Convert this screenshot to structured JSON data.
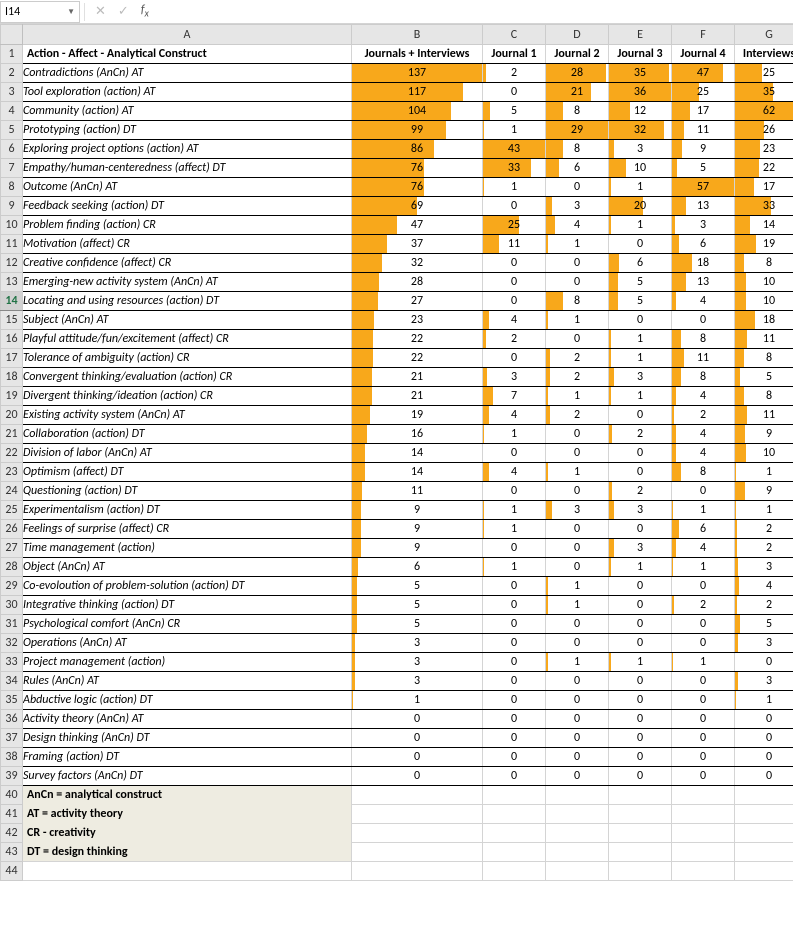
{
  "nameBox": "I14",
  "formula": "",
  "columns": [
    "A",
    "B",
    "C",
    "D",
    "E",
    "F",
    "G"
  ],
  "header": {
    "A": "Action - Affect - Analytical Construct",
    "B": "Journals + Interviews",
    "C": "Journal 1",
    "D": "Journal 2",
    "E": "Journal 3",
    "F": "Journal 4",
    "G": "Interviews"
  },
  "barColor": "#f8a81b",
  "maxValues": {
    "B": 137,
    "C": 43,
    "D": 29,
    "E": 36,
    "F": 57,
    "G": 62
  },
  "selectedRow": 14,
  "rows": [
    {
      "r": 2,
      "label": "Contradictions (AnCn) AT",
      "B": 137,
      "C": 2,
      "D": 28,
      "E": 35,
      "F": 47,
      "G": 25
    },
    {
      "r": 3,
      "label": "Tool exploration (action) AT",
      "B": 117,
      "C": 0,
      "D": 21,
      "E": 36,
      "F": 25,
      "G": 35
    },
    {
      "r": 4,
      "label": "Community (action) AT",
      "B": 104,
      "C": 5,
      "D": 8,
      "E": 12,
      "F": 17,
      "G": 62
    },
    {
      "r": 5,
      "label": "Prototyping (action) DT",
      "B": 99,
      "C": 1,
      "D": 29,
      "E": 32,
      "F": 11,
      "G": 26
    },
    {
      "r": 6,
      "label": "Exploring project options (action) AT",
      "B": 86,
      "C": 43,
      "D": 8,
      "E": 3,
      "F": 9,
      "G": 23
    },
    {
      "r": 7,
      "label": "Empathy/human-centeredness (affect) DT",
      "B": 76,
      "C": 33,
      "D": 6,
      "E": 10,
      "F": 5,
      "G": 22
    },
    {
      "r": 8,
      "label": "Outcome (AnCn) AT",
      "B": 76,
      "C": 1,
      "D": 0,
      "E": 1,
      "F": 57,
      "G": 17
    },
    {
      "r": 9,
      "label": "Feedback seeking (action) DT",
      "B": 69,
      "C": 0,
      "D": 3,
      "E": 20,
      "F": 13,
      "G": 33
    },
    {
      "r": 10,
      "label": "Problem finding (action) CR",
      "B": 47,
      "C": 25,
      "D": 4,
      "E": 1,
      "F": 3,
      "G": 14
    },
    {
      "r": 11,
      "label": "Motivation (affect) CR",
      "B": 37,
      "C": 11,
      "D": 1,
      "E": 0,
      "F": 6,
      "G": 19
    },
    {
      "r": 12,
      "label": "Creative confidence (affect) CR",
      "B": 32,
      "C": 0,
      "D": 0,
      "E": 6,
      "F": 18,
      "G": 8
    },
    {
      "r": 13,
      "label": "Emerging-new activity system (AnCn) AT",
      "B": 28,
      "C": 0,
      "D": 0,
      "E": 5,
      "F": 13,
      "G": 10
    },
    {
      "r": 14,
      "label": "Locating and using resources (action) DT",
      "B": 27,
      "C": 0,
      "D": 8,
      "E": 5,
      "F": 4,
      "G": 10
    },
    {
      "r": 15,
      "label": "Subject (AnCn) AT",
      "B": 23,
      "C": 4,
      "D": 1,
      "E": 0,
      "F": 0,
      "G": 18
    },
    {
      "r": 16,
      "label": "Playful attitude/fun/excitement (affect) CR",
      "B": 22,
      "C": 2,
      "D": 0,
      "E": 1,
      "F": 8,
      "G": 11
    },
    {
      "r": 17,
      "label": "Tolerance of ambiguity (action) CR",
      "B": 22,
      "C": 0,
      "D": 2,
      "E": 1,
      "F": 11,
      "G": 8
    },
    {
      "r": 18,
      "label": "Convergent thinking/evaluation (action) CR",
      "B": 21,
      "C": 3,
      "D": 2,
      "E": 3,
      "F": 8,
      "G": 5
    },
    {
      "r": 19,
      "label": "Divergent thinking/ideation (action) CR",
      "B": 21,
      "C": 7,
      "D": 1,
      "E": 1,
      "F": 4,
      "G": 8
    },
    {
      "r": 20,
      "label": "Existing activity system (AnCn) AT",
      "B": 19,
      "C": 4,
      "D": 2,
      "E": 0,
      "F": 2,
      "G": 11
    },
    {
      "r": 21,
      "label": "Collaboration (action) DT",
      "B": 16,
      "C": 1,
      "D": 0,
      "E": 2,
      "F": 4,
      "G": 9
    },
    {
      "r": 22,
      "label": "Division of labor (AnCn) AT",
      "B": 14,
      "C": 0,
      "D": 0,
      "E": 0,
      "F": 4,
      "G": 10
    },
    {
      "r": 23,
      "label": "Optimism (affect) DT",
      "B": 14,
      "C": 4,
      "D": 1,
      "E": 0,
      "F": 8,
      "G": 1
    },
    {
      "r": 24,
      "label": "Questioning (action) DT",
      "B": 11,
      "C": 0,
      "D": 0,
      "E": 2,
      "F": 0,
      "G": 9
    },
    {
      "r": 25,
      "label": "Experimentalism (action) DT",
      "B": 9,
      "C": 1,
      "D": 3,
      "E": 3,
      "F": 1,
      "G": 1
    },
    {
      "r": 26,
      "label": "Feelings of surprise (affect) CR",
      "B": 9,
      "C": 1,
      "D": 0,
      "E": 0,
      "F": 6,
      "G": 2
    },
    {
      "r": 27,
      "label": "Time management (action)",
      "B": 9,
      "C": 0,
      "D": 0,
      "E": 3,
      "F": 4,
      "G": 2
    },
    {
      "r": 28,
      "label": "Object (AnCn) AT",
      "B": 6,
      "C": 1,
      "D": 0,
      "E": 1,
      "F": 1,
      "G": 3
    },
    {
      "r": 29,
      "label": "Co-evoloution of problem-solution (action) DT",
      "B": 5,
      "C": 0,
      "D": 1,
      "E": 0,
      "F": 0,
      "G": 4
    },
    {
      "r": 30,
      "label": "Integrative thinking (action) DT",
      "B": 5,
      "C": 0,
      "D": 1,
      "E": 0,
      "F": 2,
      "G": 2
    },
    {
      "r": 31,
      "label": "Psychological comfort (AnCn) CR",
      "B": 5,
      "C": 0,
      "D": 0,
      "E": 0,
      "F": 0,
      "G": 5
    },
    {
      "r": 32,
      "label": "Operations (AnCn) AT",
      "B": 3,
      "C": 0,
      "D": 0,
      "E": 0,
      "F": 0,
      "G": 3
    },
    {
      "r": 33,
      "label": "Project management (action)",
      "B": 3,
      "C": 0,
      "D": 1,
      "E": 1,
      "F": 1,
      "G": 0
    },
    {
      "r": 34,
      "label": "Rules (AnCn) AT",
      "B": 3,
      "C": 0,
      "D": 0,
      "E": 0,
      "F": 0,
      "G": 3
    },
    {
      "r": 35,
      "label": "Abductive logic (action) DT",
      "B": 1,
      "C": 0,
      "D": 0,
      "E": 0,
      "F": 0,
      "G": 1
    },
    {
      "r": 36,
      "label": "Activity theory (AnCn) AT",
      "B": 0,
      "C": 0,
      "D": 0,
      "E": 0,
      "F": 0,
      "G": 0
    },
    {
      "r": 37,
      "label": "Design thinking (AnCn) DT",
      "B": 0,
      "C": 0,
      "D": 0,
      "E": 0,
      "F": 0,
      "G": 0
    },
    {
      "r": 38,
      "label": "Framing (action) DT",
      "B": 0,
      "C": 0,
      "D": 0,
      "E": 0,
      "F": 0,
      "G": 0
    },
    {
      "r": 39,
      "label": "Survey factors (AnCn) DT",
      "B": 0,
      "C": 0,
      "D": 0,
      "E": 0,
      "F": 0,
      "G": 0
    }
  ],
  "legend": [
    {
      "r": 40,
      "text": "AnCn = analytical construct"
    },
    {
      "r": 41,
      "text": "AT = activity theory"
    },
    {
      "r": 42,
      "text": "CR - creativity"
    },
    {
      "r": 43,
      "text": "DT = design thinking"
    }
  ]
}
